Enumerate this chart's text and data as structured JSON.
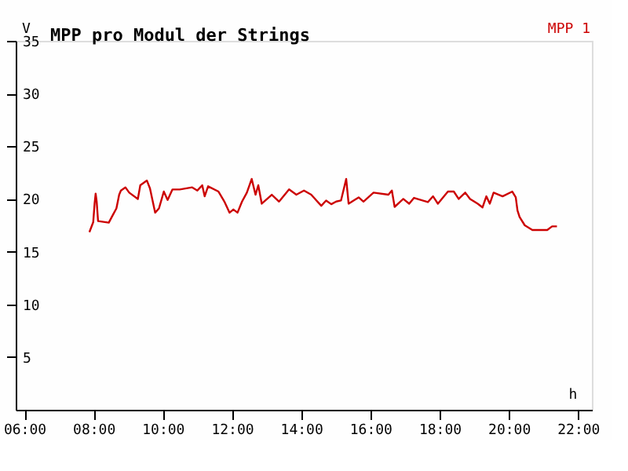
{
  "chart_data": {
    "type": "line",
    "title": "MPP pro Modul der Strings",
    "xlabel": "h",
    "ylabel": "V",
    "legend": "top right",
    "grid": false,
    "marker": "none",
    "line_style": "solid",
    "xlim": [
      5.75,
      22.4
    ],
    "ylim": [
      0,
      35
    ],
    "xticks": [
      {
        "value": 6,
        "label": "06:00"
      },
      {
        "value": 8,
        "label": "08:00"
      },
      {
        "value": 10,
        "label": "10:00"
      },
      {
        "value": 12,
        "label": "12:00"
      },
      {
        "value": 14,
        "label": "14:00"
      },
      {
        "value": 16,
        "label": "16:00"
      },
      {
        "value": 18,
        "label": "18:00"
      },
      {
        "value": 20,
        "label": "20:00"
      },
      {
        "value": 22,
        "label": "22:00"
      }
    ],
    "yticks": [
      5,
      10,
      15,
      20,
      25,
      30,
      35
    ],
    "x": [
      7.88,
      7.99,
      8.03,
      8.06,
      8.09,
      8.13,
      8.44,
      8.56,
      8.66,
      8.74,
      8.79,
      8.92,
      9.03,
      9.28,
      9.35,
      9.54,
      9.63,
      9.78,
      9.89,
      10.03,
      10.14,
      10.28,
      10.49,
      10.85,
      11.0,
      11.14,
      11.21,
      11.31,
      11.61,
      11.78,
      11.93,
      12.04,
      12.16,
      12.29,
      12.43,
      12.57,
      12.68,
      12.76,
      12.86,
      13.15,
      13.36,
      13.65,
      13.86,
      14.08,
      14.29,
      14.58,
      14.72,
      14.87,
      15.01,
      15.15,
      15.3,
      15.37,
      15.66,
      15.8,
      16.09,
      16.52,
      16.62,
      16.7,
      16.95,
      17.12,
      17.26,
      17.66,
      17.81,
      17.95,
      18.24,
      18.41,
      18.55,
      18.74,
      18.88,
      19.1,
      19.24,
      19.35,
      19.45,
      19.56,
      19.82,
      20.1,
      20.2,
      20.25,
      20.31,
      20.46,
      20.68,
      21.11,
      21.25,
      21.39
    ],
    "series": [
      {
        "name": "MPP 1",
        "color": "#cc0000",
        "values": [
          16.85,
          17.8,
          19.55,
          20.5,
          19.75,
          17.9,
          17.75,
          18.5,
          19.1,
          20.4,
          20.8,
          21.1,
          20.6,
          20.0,
          21.3,
          21.75,
          21.0,
          18.7,
          19.1,
          20.7,
          19.9,
          20.9,
          20.9,
          21.1,
          20.8,
          21.3,
          20.25,
          21.2,
          20.7,
          19.75,
          18.7,
          19.0,
          18.7,
          19.75,
          20.6,
          21.9,
          20.4,
          21.3,
          19.55,
          20.4,
          19.75,
          20.9,
          20.4,
          20.8,
          20.4,
          19.35,
          19.85,
          19.5,
          19.75,
          19.85,
          21.9,
          19.55,
          20.15,
          19.75,
          20.6,
          20.4,
          20.8,
          19.25,
          20.0,
          19.55,
          20.1,
          19.7,
          20.25,
          19.55,
          20.7,
          20.7,
          20.0,
          20.6,
          20.0,
          19.55,
          19.2,
          20.25,
          19.55,
          20.6,
          20.25,
          20.7,
          20.15,
          18.9,
          18.3,
          17.5,
          17.05,
          17.05,
          17.4,
          17.4
        ]
      }
    ]
  }
}
